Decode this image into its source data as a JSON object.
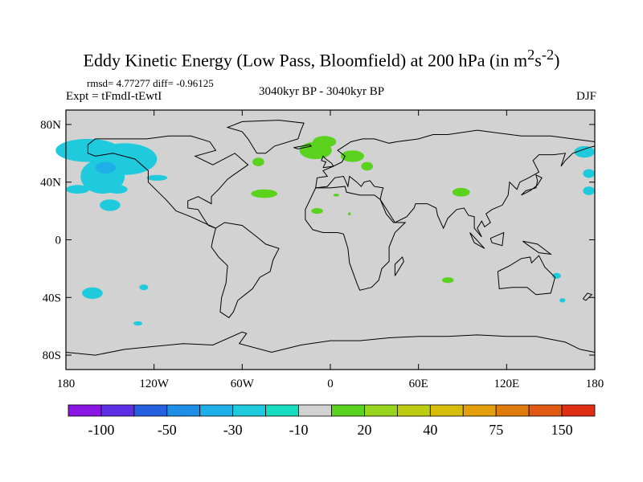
{
  "title": "Eddy Kinetic Energy (Low Pass, Bloomfield) at 200 hPa (in m",
  "title_units_sup1": "2",
  "title_units_mid": "s",
  "title_units_sup2": "-2",
  "title_units_end": ")",
  "rmsd_text": "rmsd= 4.77277 diff= -0.96125",
  "expt_text": "Expt = tFmdI-tEwtI",
  "period_text": "3040kyr BP - 3040kyr BP",
  "season_text": "DJF",
  "chart_data": {
    "type": "heatmap",
    "title": "Eddy Kinetic Energy (Low Pass, Bloomfield) at 200 hPa (in m^2 s^-2)",
    "x_axis": {
      "range": [
        -180,
        180
      ],
      "ticks": [
        -180,
        -120,
        -60,
        0,
        60,
        120,
        180
      ],
      "tick_labels": [
        "180",
        "120W",
        "60W",
        "0",
        "60E",
        "120E",
        "180"
      ]
    },
    "y_axis": {
      "range": [
        -90,
        90
      ],
      "ticks": [
        80,
        40,
        0,
        -40,
        -80
      ],
      "tick_labels": [
        "80N",
        "40N",
        "0",
        "40S",
        "80S"
      ]
    },
    "colorbar": {
      "labels": [
        "-100",
        "-50",
        "-30",
        "-10",
        "20",
        "40",
        "75",
        "150"
      ],
      "label_bins": [
        1,
        3,
        5,
        7,
        9,
        11,
        13,
        15
      ],
      "colors": [
        "#8a16e4",
        "#5c2ee6",
        "#2460e0",
        "#1e8ee6",
        "#1eaee8",
        "#1ecadc",
        "#18dcc0",
        "#d2d2d2",
        "#5ad21e",
        "#96d41e",
        "#bccc10",
        "#d8bc0a",
        "#e4a00c",
        "#e07c0e",
        "#e05a14",
        "#e02e14"
      ]
    },
    "background_color": "#d2d2d2",
    "positive_color": "#5ad21e",
    "negative_color": "#1ecadc",
    "negative_dark_color": "#1eaee8",
    "anomaly_regions": [
      {
        "sign": "neg",
        "lon": -165,
        "lat": 62,
        "rlon": 22,
        "rlat": 8
      },
      {
        "sign": "neg",
        "lon": -140,
        "lat": 56,
        "rlon": 22,
        "rlat": 11
      },
      {
        "sign": "neg",
        "lon": -155,
        "lat": 44,
        "rlon": 15,
        "rlat": 12
      },
      {
        "sign": "neg",
        "lon": -172,
        "lat": 35,
        "rlon": 8,
        "rlat": 3
      },
      {
        "sign": "neg",
        "lon": -150,
        "lat": 24,
        "rlon": 7,
        "rlat": 4
      },
      {
        "sign": "neg",
        "lon": -145,
        "lat": 35,
        "rlon": 7,
        "rlat": 3
      },
      {
        "sign": "neg",
        "lon": -118,
        "lat": 43,
        "rlon": 7,
        "rlat": 2
      },
      {
        "sign": "neg",
        "lon": 173,
        "lat": 61,
        "rlon": 7,
        "rlat": 4
      },
      {
        "sign": "neg",
        "lon": 176,
        "lat": 46,
        "rlon": 4,
        "rlat": 3
      },
      {
        "sign": "neg",
        "lon": 176,
        "lat": 34,
        "rlon": 4,
        "rlat": 3
      },
      {
        "sign": "neg",
        "lon": -162,
        "lat": -37,
        "rlon": 7,
        "rlat": 4
      },
      {
        "sign": "neg",
        "lon": -127,
        "lat": -33,
        "rlon": 3,
        "rlat": 2
      },
      {
        "sign": "neg",
        "lon": -131,
        "lat": -58,
        "rlon": 3,
        "rlat": 1.5
      },
      {
        "sign": "neg",
        "lon": 154,
        "lat": -25,
        "rlon": 3,
        "rlat": 2
      },
      {
        "sign": "neg",
        "lon": 158,
        "lat": -42,
        "rlon": 2,
        "rlat": 1.5
      },
      {
        "sign": "neg_dark",
        "lon": -153,
        "lat": 50,
        "rlon": 7,
        "rlat": 4
      },
      {
        "sign": "pos",
        "lon": -10,
        "lat": 62,
        "rlon": 11,
        "rlat": 6
      },
      {
        "sign": "pos",
        "lon": -4,
        "lat": 68,
        "rlon": 8,
        "rlat": 4
      },
      {
        "sign": "pos",
        "lon": 15,
        "lat": 58,
        "rlon": 8,
        "rlat": 4
      },
      {
        "sign": "pos",
        "lon": -49,
        "lat": 54,
        "rlon": 4,
        "rlat": 3
      },
      {
        "sign": "pos",
        "lon": -45,
        "lat": 32,
        "rlon": 9,
        "rlat": 3
      },
      {
        "sign": "pos",
        "lon": 25,
        "lat": 51,
        "rlon": 4,
        "rlat": 3
      },
      {
        "sign": "pos",
        "lon": 4,
        "lat": 31,
        "rlon": 2,
        "rlat": 1
      },
      {
        "sign": "pos",
        "lon": -9,
        "lat": 20,
        "rlon": 4,
        "rlat": 2
      },
      {
        "sign": "pos",
        "lon": 89,
        "lat": 33,
        "rlon": 6,
        "rlat": 3
      },
      {
        "sign": "pos",
        "lon": 13,
        "lat": 18,
        "rlon": 1,
        "rlat": 1
      },
      {
        "sign": "pos",
        "lon": 80,
        "lat": -28,
        "rlon": 4,
        "rlat": 2
      }
    ]
  }
}
